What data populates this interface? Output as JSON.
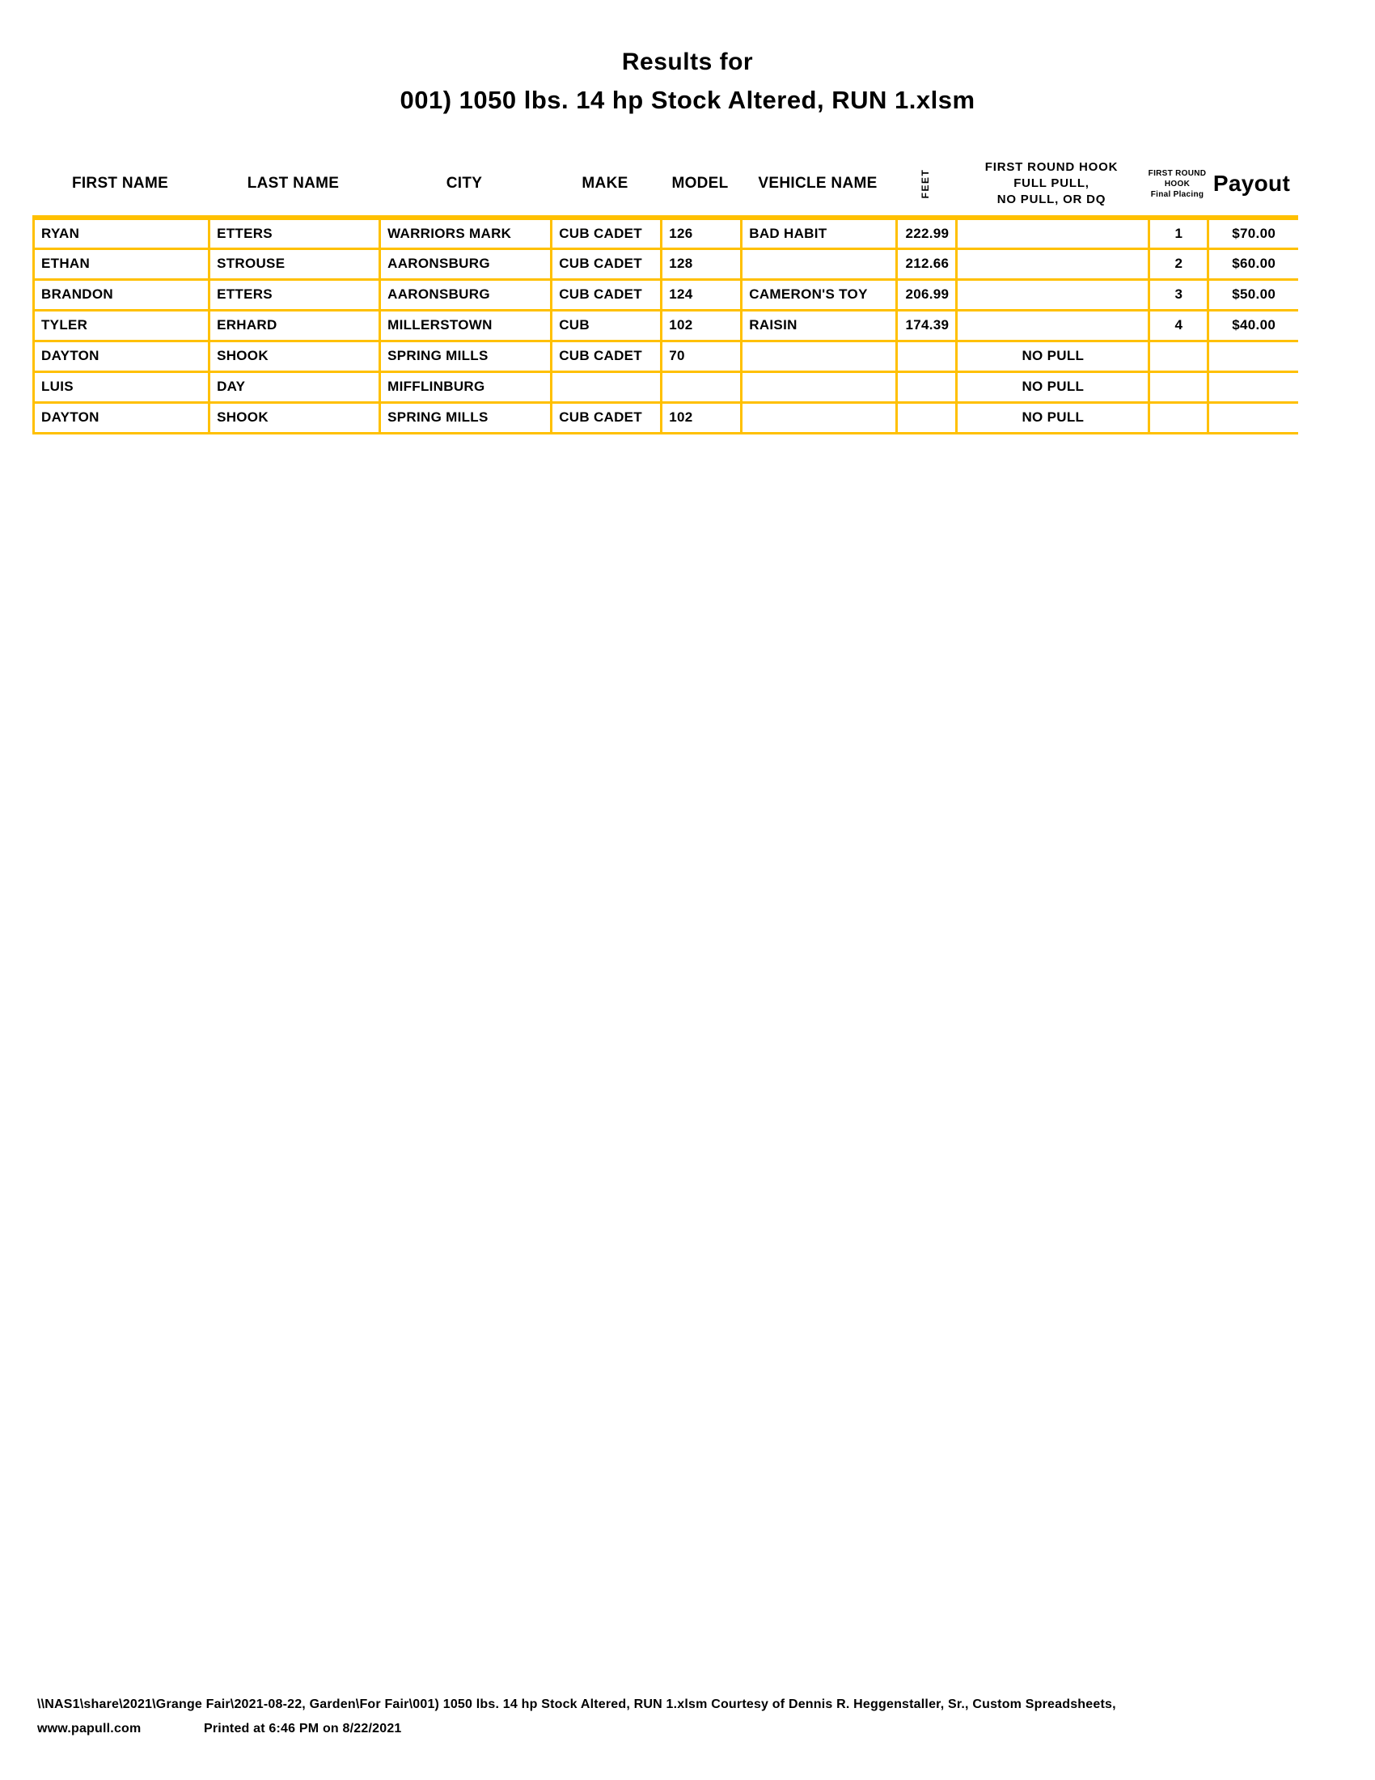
{
  "page": {
    "title_line1": "Results for",
    "title_line2": "001) 1050 lbs. 14 hp Stock Altered, RUN 1.xlsm"
  },
  "table": {
    "border_color": "#FFC000",
    "headers": {
      "first_name": "FIRST NAME",
      "last_name": "LAST NAME",
      "city": "CITY",
      "make": "MAKE",
      "model": "MODEL",
      "vehicle_name": "VEHICLE NAME",
      "feet": "FEET",
      "hook_line1": "FIRST ROUND HOOK",
      "hook_line2": "FULL PULL,",
      "hook_line3": "NO PULL, OR DQ",
      "placing_line1": "FIRST ROUND",
      "placing_line2": "HOOK",
      "placing_line3": "Final Placing",
      "payout": "Payout"
    },
    "rows": [
      {
        "first_name": "RYAN",
        "last_name": "ETTERS",
        "city": "WARRIORS MARK",
        "make": "CUB CADET",
        "model": "126",
        "vehicle_name": "BAD HABIT",
        "feet": "222.99",
        "hook": "",
        "placing": "1",
        "payout": "$70.00"
      },
      {
        "first_name": "ETHAN",
        "last_name": "STROUSE",
        "city": "AARONSBURG",
        "make": "CUB CADET",
        "model": "128",
        "vehicle_name": "",
        "feet": "212.66",
        "hook": "",
        "placing": "2",
        "payout": "$60.00"
      },
      {
        "first_name": "BRANDON",
        "last_name": "ETTERS",
        "city": "AARONSBURG",
        "make": "CUB CADET",
        "model": "124",
        "vehicle_name": "CAMERON'S TOY",
        "feet": "206.99",
        "hook": "",
        "placing": "3",
        "payout": "$50.00"
      },
      {
        "first_name": "TYLER",
        "last_name": "ERHARD",
        "city": "MILLERSTOWN",
        "make": "CUB",
        "model": "102",
        "vehicle_name": "RAISIN",
        "feet": "174.39",
        "hook": "",
        "placing": "4",
        "payout": "$40.00"
      },
      {
        "first_name": "DAYTON",
        "last_name": "SHOOK",
        "city": "SPRING MILLS",
        "make": "CUB CADET",
        "model": "70",
        "vehicle_name": "",
        "feet": "",
        "hook": "NO PULL",
        "placing": "",
        "payout": ""
      },
      {
        "first_name": "LUIS",
        "last_name": "DAY",
        "city": "MIFFLINBURG",
        "make": "",
        "model": "",
        "vehicle_name": "",
        "feet": "",
        "hook": "NO PULL",
        "placing": "",
        "payout": ""
      },
      {
        "first_name": "DAYTON",
        "last_name": "SHOOK",
        "city": "SPRING MILLS",
        "make": "CUB CADET",
        "model": "102",
        "vehicle_name": "",
        "feet": "",
        "hook": "NO PULL",
        "placing": "",
        "payout": ""
      }
    ]
  },
  "footer": {
    "line1": "\\\\NAS1\\share\\2021\\Grange Fair\\2021-08-22, Garden\\For Fair\\001) 1050 lbs. 14 hp Stock Altered, RUN 1.xlsm  Courtesy of Dennis R. Heggenstaller, Sr., Custom Spreadsheets,",
    "line2_left": "www.papull.com",
    "line2_right": "Printed at 6:46 PM on 8/22/2021"
  }
}
